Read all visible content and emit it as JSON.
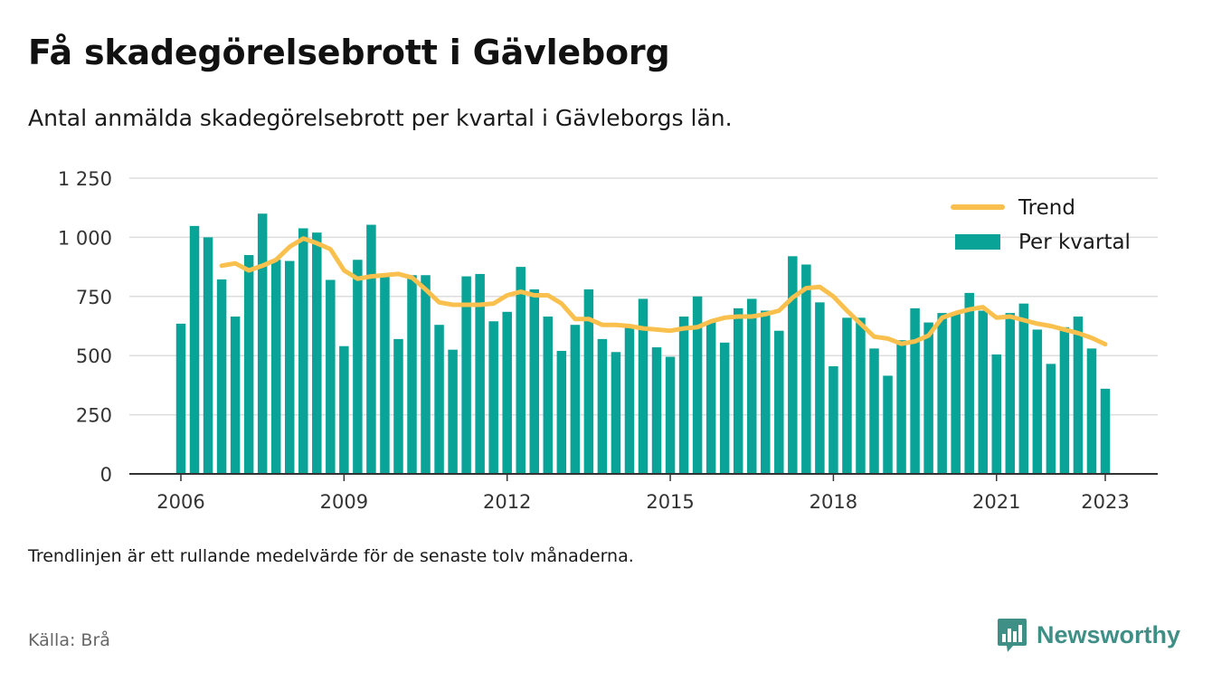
{
  "title": "Få skadegörelsebrott i Gävleborg",
  "subtitle": "Antal anmälda skadegörelsebrott per kvartal i Gävleborgs län.",
  "note": "Trendlinjen är ett rullande medelvärde för de senaste tolv månaderna.",
  "source": "Källa: Brå",
  "brand": {
    "name": "Newsworthy",
    "icon": "newsworthy-logo-icon"
  },
  "colors": {
    "bars": "#0aa398",
    "trend": "#f9c04e",
    "grid": "#dddddd",
    "axis": "#333333",
    "brand": "#3f8f86"
  },
  "chart_data": {
    "type": "bar",
    "title": "Få skadegörelsebrott i Gävleborg",
    "subtitle": "Antal anmälda skadegörelsebrott per kvartal i Gävleborgs län.",
    "xlabel": "",
    "ylabel": "",
    "ylim": [
      0,
      1250
    ],
    "yticks": [
      0,
      250,
      500,
      750,
      1000,
      1250
    ],
    "ytick_labels": [
      "0",
      "250",
      "500",
      "750",
      "1 000",
      "1 250"
    ],
    "xlim": [
      "2006Q1",
      "2023Q1"
    ],
    "xticks": [
      "2006",
      "2009",
      "2012",
      "2015",
      "2018",
      "2021",
      "2023"
    ],
    "grid": true,
    "legend_position": "top-right",
    "categories": [
      "2006Q1",
      "2006Q2",
      "2006Q3",
      "2006Q4",
      "2007Q1",
      "2007Q2",
      "2007Q3",
      "2007Q4",
      "2008Q1",
      "2008Q2",
      "2008Q3",
      "2008Q4",
      "2009Q1",
      "2009Q2",
      "2009Q3",
      "2009Q4",
      "2010Q1",
      "2010Q2",
      "2010Q3",
      "2010Q4",
      "2011Q1",
      "2011Q2",
      "2011Q3",
      "2011Q4",
      "2012Q1",
      "2012Q2",
      "2012Q3",
      "2012Q4",
      "2013Q1",
      "2013Q2",
      "2013Q3",
      "2013Q4",
      "2014Q1",
      "2014Q2",
      "2014Q3",
      "2014Q4",
      "2015Q1",
      "2015Q2",
      "2015Q3",
      "2015Q4",
      "2016Q1",
      "2016Q2",
      "2016Q3",
      "2016Q4",
      "2017Q1",
      "2017Q2",
      "2017Q3",
      "2017Q4",
      "2018Q1",
      "2018Q2",
      "2018Q3",
      "2018Q4",
      "2019Q1",
      "2019Q2",
      "2019Q3",
      "2019Q4",
      "2020Q1",
      "2020Q2",
      "2020Q3",
      "2020Q4",
      "2021Q1",
      "2021Q2",
      "2021Q3",
      "2021Q4",
      "2022Q1",
      "2022Q2",
      "2022Q3",
      "2022Q4",
      "2023Q1"
    ],
    "series": [
      {
        "name": "Per kvartal",
        "type": "bar",
        "values": [
          635,
          1048,
          1000,
          822,
          665,
          925,
          1100,
          905,
          900,
          1038,
          1020,
          820,
          540,
          905,
          1053,
          840,
          570,
          840,
          840,
          630,
          525,
          835,
          845,
          645,
          685,
          875,
          780,
          665,
          520,
          630,
          780,
          570,
          515,
          620,
          740,
          535,
          495,
          665,
          750,
          645,
          555,
          700,
          740,
          690,
          605,
          920,
          885,
          725,
          455,
          660,
          660,
          530,
          415,
          565,
          700,
          640,
          680,
          680,
          765,
          690,
          505,
          680,
          720,
          610,
          465,
          620,
          665,
          530,
          360
        ]
      },
      {
        "name": "Trend",
        "type": "line",
        "values": [
          null,
          null,
          null,
          880,
          890,
          860,
          880,
          905,
          960,
          995,
          975,
          950,
          860,
          825,
          835,
          840,
          845,
          830,
          780,
          725,
          715,
          715,
          715,
          720,
          755,
          770,
          755,
          755,
          720,
          655,
          655,
          630,
          630,
          625,
          615,
          610,
          605,
          615,
          620,
          645,
          660,
          665,
          665,
          675,
          690,
          745,
          785,
          790,
          750,
          690,
          635,
          580,
          572,
          550,
          560,
          585,
          660,
          680,
          695,
          705,
          660,
          665,
          650,
          635,
          625,
          610,
          595,
          575,
          548
        ]
      }
    ]
  }
}
